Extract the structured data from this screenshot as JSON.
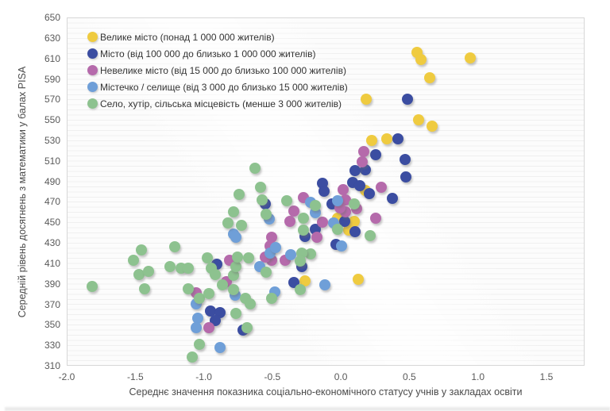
{
  "chart_data": {
    "type": "scatter",
    "title": "",
    "xlabel": "Середнє значення показника соціально-економічного статусу учнів у закладах освіти",
    "ylabel": "Середній рівень досягнень з математики  у балах PISA",
    "xlim": [
      -2.0,
      1.77
    ],
    "ylim": [
      310,
      650
    ],
    "xticks": [
      "-2.0",
      "-1.5",
      "-1.0",
      "-0.5",
      "0.0",
      "0.5",
      "1.0",
      "1.5"
    ],
    "yticks": [
      650,
      630,
      610,
      590,
      570,
      550,
      530,
      510,
      490,
      470,
      450,
      430,
      410,
      390,
      370,
      350,
      330,
      310
    ],
    "grid": "minor-horizontal",
    "legend_position": "top-left-inside",
    "series": [
      {
        "id": "big-city",
        "name": "Велике місто (понад 1 000 000 жителів)",
        "color": "#EFCB40",
        "points": [
          [
            0.55,
            617
          ],
          [
            0.58,
            610
          ],
          [
            0.94,
            611
          ],
          [
            0.64,
            592
          ],
          [
            0.18,
            571
          ],
          [
            0.56,
            551
          ],
          [
            0.66,
            545
          ],
          [
            0.22,
            531
          ],
          [
            0.33,
            532
          ],
          [
            0.17,
            482
          ],
          [
            -0.03,
            455
          ],
          [
            0.09,
            452
          ],
          [
            0.05,
            443
          ],
          [
            -0.27,
            394
          ],
          [
            0.12,
            395
          ]
        ]
      },
      {
        "id": "city",
        "name": "Місто (від 100 000 до близько 1 000 000 жителів)",
        "color": "#3B4DA1",
        "points": [
          [
            0.48,
            571
          ],
          [
            0.41,
            532
          ],
          [
            0.25,
            517
          ],
          [
            0.46,
            512
          ],
          [
            0.17,
            502
          ],
          [
            0.1,
            501
          ],
          [
            0.47,
            495
          ],
          [
            -0.14,
            489
          ],
          [
            0.08,
            490
          ],
          [
            0.13,
            487
          ],
          [
            -0.13,
            481
          ],
          [
            0.2,
            479
          ],
          [
            0.37,
            474
          ],
          [
            -0.56,
            469
          ],
          [
            -0.07,
            469
          ],
          [
            0.02,
            452
          ],
          [
            0.1,
            442
          ],
          [
            -0.19,
            444
          ],
          [
            -0.27,
            437
          ],
          [
            -0.04,
            429
          ],
          [
            -0.29,
            408
          ],
          [
            -0.35,
            392
          ],
          [
            -0.91,
            410
          ],
          [
            -0.96,
            364
          ],
          [
            -0.89,
            363
          ],
          [
            -0.92,
            355
          ],
          [
            -0.72,
            346
          ]
        ]
      },
      {
        "id": "small-city",
        "name": "Невелике місто (від 15 000 до близько 100 000 жителів)",
        "color": "#B56AAB",
        "points": [
          [
            0.16,
            520
          ],
          [
            0.15,
            510
          ],
          [
            0.29,
            485
          ],
          [
            0.01,
            483
          ],
          [
            -0.28,
            475
          ],
          [
            0.03,
            473
          ],
          [
            -0.35,
            462
          ],
          [
            0.03,
            461
          ],
          [
            -0.01,
            465
          ],
          [
            0.11,
            464
          ],
          [
            -0.38,
            452
          ],
          [
            0.25,
            455
          ],
          [
            -0.14,
            451
          ],
          [
            -0.18,
            436
          ],
          [
            -0.51,
            436
          ],
          [
            -0.52,
            428
          ],
          [
            -0.51,
            414
          ],
          [
            -0.41,
            414
          ],
          [
            -0.56,
            417
          ],
          [
            -0.82,
            414
          ],
          [
            -0.84,
            393
          ],
          [
            -1.06,
            382
          ],
          [
            -0.97,
            348
          ]
        ]
      },
      {
        "id": "town",
        "name": "Містечко / селище (від 3 000 до близько 15 000 жителів)",
        "color": "#6F9FD8",
        "points": [
          [
            -0.23,
            470
          ],
          [
            -0.03,
            472
          ],
          [
            0.0,
            428
          ],
          [
            -0.53,
            454
          ],
          [
            -0.19,
            460
          ],
          [
            -0.06,
            450
          ],
          [
            -0.12,
            390
          ],
          [
            -0.49,
            383
          ],
          [
            -0.37,
            419
          ],
          [
            -0.52,
            421
          ],
          [
            -0.48,
            426
          ],
          [
            -0.79,
            439
          ],
          [
            -0.77,
            436
          ],
          [
            -0.6,
            408
          ],
          [
            -1.06,
            371
          ],
          [
            -0.78,
            380
          ],
          [
            -1.05,
            357
          ],
          [
            -1.06,
            348
          ],
          [
            -0.89,
            329
          ]
        ]
      },
      {
        "id": "village",
        "name": "Село, хутір, сільська місцевість (менше 3 000 жителів)",
        "color": "#8DC28F",
        "points": [
          [
            -1.82,
            388
          ],
          [
            -1.46,
            424
          ],
          [
            -1.52,
            414
          ],
          [
            -1.48,
            400
          ],
          [
            -1.41,
            403
          ],
          [
            -1.44,
            386
          ],
          [
            -1.22,
            427
          ],
          [
            -1.25,
            408
          ],
          [
            -1.17,
            406
          ],
          [
            -1.12,
            406
          ],
          [
            -1.12,
            386
          ],
          [
            -1.04,
            377
          ],
          [
            -0.97,
            381
          ],
          [
            -0.98,
            416
          ],
          [
            -0.95,
            406
          ],
          [
            -0.92,
            400
          ],
          [
            -0.87,
            390
          ],
          [
            -0.79,
            399
          ],
          [
            -0.79,
            385
          ],
          [
            -0.77,
            408
          ],
          [
            -0.76,
            417
          ],
          [
            -0.68,
            416
          ],
          [
            -0.7,
            377
          ],
          [
            -0.67,
            371
          ],
          [
            -0.77,
            362
          ],
          [
            -0.69,
            348
          ],
          [
            -1.04,
            332
          ],
          [
            -1.09,
            319
          ],
          [
            -0.75,
            478
          ],
          [
            -0.79,
            461
          ],
          [
            -0.83,
            450
          ],
          [
            -0.73,
            448
          ],
          [
            -0.63,
            504
          ],
          [
            -0.59,
            485
          ],
          [
            -0.58,
            473
          ],
          [
            -0.4,
            472
          ],
          [
            -0.55,
            459
          ],
          [
            -0.28,
            455
          ],
          [
            -0.28,
            443
          ],
          [
            -0.23,
            420
          ],
          [
            -0.29,
            421
          ],
          [
            -0.3,
            413
          ],
          [
            -0.3,
            385
          ],
          [
            -0.19,
            467
          ],
          [
            -0.03,
            444
          ],
          [
            0.09,
            469
          ],
          [
            0.21,
            438
          ],
          [
            -0.55,
            402
          ],
          [
            -0.51,
            377
          ]
        ]
      }
    ]
  }
}
